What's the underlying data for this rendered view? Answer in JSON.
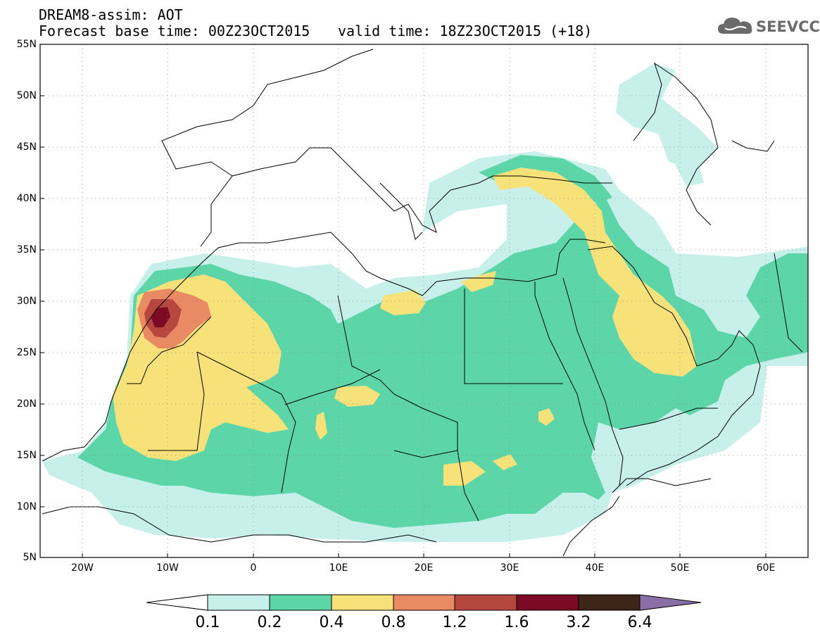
{
  "header": {
    "title": "DREAM8-assim: AOT",
    "base_time": "Forecast base time: 00Z23OCT2015",
    "valid_time": "valid time: 18Z23OCT2015 (+18)"
  },
  "logo": {
    "text": "SEEVCCC",
    "icon": "cloud-icon"
  },
  "map": {
    "projection": "lat-lon",
    "lon_range": [
      -25,
      65
    ],
    "lat_range": [
      5,
      55
    ],
    "grid": "dotted",
    "lat_labels": [
      "55N",
      "50N",
      "45N",
      "40N",
      "35N",
      "30N",
      "25N",
      "20N",
      "15N",
      "10N",
      "5N"
    ],
    "lon_labels": [
      "20W",
      "10W",
      "0",
      "10E",
      "20E",
      "30E",
      "40E",
      "50E",
      "60E"
    ]
  },
  "colorbar": {
    "labels": [
      "0.1",
      "0.2",
      "0.4",
      "0.8",
      "1.2",
      "1.6",
      "3.2",
      "6.4"
    ],
    "colors": [
      "#ffffff",
      "#c8f0ea",
      "#5cd6a9",
      "#f7e27a",
      "#e98a64",
      "#b5473f",
      "#7c0a25",
      "#3d2517",
      "#8a6fa7"
    ]
  }
}
